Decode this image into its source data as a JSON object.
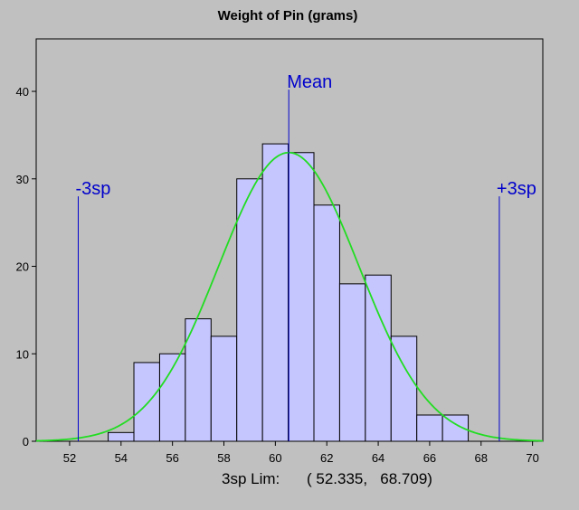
{
  "chart_data": {
    "type": "histogram",
    "title": "Weight of Pin (grams)",
    "xlabel": "",
    "ylabel": "",
    "xlim": [
      50.7,
      70.4
    ],
    "ylim": [
      0,
      46
    ],
    "x_ticks": [
      52,
      54,
      56,
      58,
      60,
      62,
      64,
      66,
      68,
      70
    ],
    "y_ticks": [
      0,
      10,
      20,
      30,
      40
    ],
    "bin_width": 1,
    "bins": [
      {
        "start": 53.5,
        "end": 54.5,
        "count": 1
      },
      {
        "start": 54.5,
        "end": 55.5,
        "count": 9
      },
      {
        "start": 55.5,
        "end": 56.5,
        "count": 10
      },
      {
        "start": 56.5,
        "end": 57.5,
        "count": 14
      },
      {
        "start": 57.5,
        "end": 58.5,
        "count": 12
      },
      {
        "start": 58.5,
        "end": 59.5,
        "count": 30
      },
      {
        "start": 59.5,
        "end": 60.5,
        "count": 34
      },
      {
        "start": 60.5,
        "end": 61.5,
        "count": 33
      },
      {
        "start": 61.5,
        "end": 62.5,
        "count": 27
      },
      {
        "start": 62.5,
        "end": 63.5,
        "count": 18
      },
      {
        "start": 63.5,
        "end": 64.5,
        "count": 19
      },
      {
        "start": 64.5,
        "end": 65.5,
        "count": 12
      },
      {
        "start": 65.5,
        "end": 66.5,
        "count": 3
      },
      {
        "start": 66.5,
        "end": 67.5,
        "count": 3
      }
    ],
    "normal_curve": {
      "mean": 60.522,
      "peak": 33,
      "sigma": 2.729
    },
    "reference_lines": [
      {
        "label": "-3sp",
        "x": 52.335,
        "top": 28
      },
      {
        "label": "Mean",
        "x": 60.522,
        "top": 40.2
      },
      {
        "label": "+3sp",
        "x": 68.709,
        "top": 28
      }
    ],
    "footer": {
      "label": "3sp Lim:",
      "values": "( 52.335,   68.709)"
    },
    "colors": {
      "background": "#c0c0c0",
      "plot_area": "#c0c0c0",
      "bar_fill": "#c6c6ff",
      "bar_stroke": "#000000",
      "curve": "#22dd22",
      "reference": "#0000cc"
    }
  }
}
